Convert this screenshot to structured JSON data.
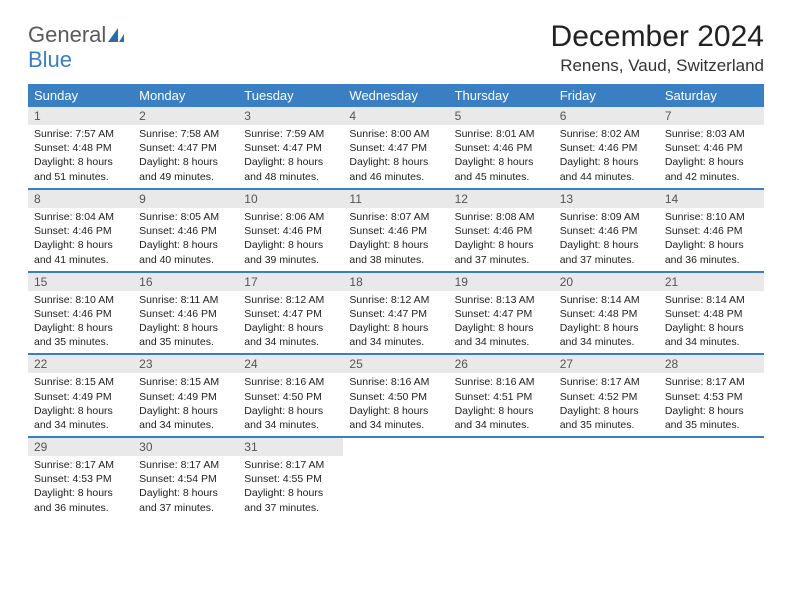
{
  "logo": {
    "general": "General",
    "blue": "Blue"
  },
  "title": "December 2024",
  "location": "Renens, Vaud, Switzerland",
  "colors": {
    "header_bg": "#3a7fc4",
    "header_text": "#ffffff",
    "daynum_bg": "#e9e9e9",
    "border": "#3a7fc4"
  },
  "weekdays": [
    "Sunday",
    "Monday",
    "Tuesday",
    "Wednesday",
    "Thursday",
    "Friday",
    "Saturday"
  ],
  "weeks": [
    [
      {
        "n": "1",
        "sr": "Sunrise: 7:57 AM",
        "ss": "Sunset: 4:48 PM",
        "dl": "Daylight: 8 hours and 51 minutes."
      },
      {
        "n": "2",
        "sr": "Sunrise: 7:58 AM",
        "ss": "Sunset: 4:47 PM",
        "dl": "Daylight: 8 hours and 49 minutes."
      },
      {
        "n": "3",
        "sr": "Sunrise: 7:59 AM",
        "ss": "Sunset: 4:47 PM",
        "dl": "Daylight: 8 hours and 48 minutes."
      },
      {
        "n": "4",
        "sr": "Sunrise: 8:00 AM",
        "ss": "Sunset: 4:47 PM",
        "dl": "Daylight: 8 hours and 46 minutes."
      },
      {
        "n": "5",
        "sr": "Sunrise: 8:01 AM",
        "ss": "Sunset: 4:46 PM",
        "dl": "Daylight: 8 hours and 45 minutes."
      },
      {
        "n": "6",
        "sr": "Sunrise: 8:02 AM",
        "ss": "Sunset: 4:46 PM",
        "dl": "Daylight: 8 hours and 44 minutes."
      },
      {
        "n": "7",
        "sr": "Sunrise: 8:03 AM",
        "ss": "Sunset: 4:46 PM",
        "dl": "Daylight: 8 hours and 42 minutes."
      }
    ],
    [
      {
        "n": "8",
        "sr": "Sunrise: 8:04 AM",
        "ss": "Sunset: 4:46 PM",
        "dl": "Daylight: 8 hours and 41 minutes."
      },
      {
        "n": "9",
        "sr": "Sunrise: 8:05 AM",
        "ss": "Sunset: 4:46 PM",
        "dl": "Daylight: 8 hours and 40 minutes."
      },
      {
        "n": "10",
        "sr": "Sunrise: 8:06 AM",
        "ss": "Sunset: 4:46 PM",
        "dl": "Daylight: 8 hours and 39 minutes."
      },
      {
        "n": "11",
        "sr": "Sunrise: 8:07 AM",
        "ss": "Sunset: 4:46 PM",
        "dl": "Daylight: 8 hours and 38 minutes."
      },
      {
        "n": "12",
        "sr": "Sunrise: 8:08 AM",
        "ss": "Sunset: 4:46 PM",
        "dl": "Daylight: 8 hours and 37 minutes."
      },
      {
        "n": "13",
        "sr": "Sunrise: 8:09 AM",
        "ss": "Sunset: 4:46 PM",
        "dl": "Daylight: 8 hours and 37 minutes."
      },
      {
        "n": "14",
        "sr": "Sunrise: 8:10 AM",
        "ss": "Sunset: 4:46 PM",
        "dl": "Daylight: 8 hours and 36 minutes."
      }
    ],
    [
      {
        "n": "15",
        "sr": "Sunrise: 8:10 AM",
        "ss": "Sunset: 4:46 PM",
        "dl": "Daylight: 8 hours and 35 minutes."
      },
      {
        "n": "16",
        "sr": "Sunrise: 8:11 AM",
        "ss": "Sunset: 4:46 PM",
        "dl": "Daylight: 8 hours and 35 minutes."
      },
      {
        "n": "17",
        "sr": "Sunrise: 8:12 AM",
        "ss": "Sunset: 4:47 PM",
        "dl": "Daylight: 8 hours and 34 minutes."
      },
      {
        "n": "18",
        "sr": "Sunrise: 8:12 AM",
        "ss": "Sunset: 4:47 PM",
        "dl": "Daylight: 8 hours and 34 minutes."
      },
      {
        "n": "19",
        "sr": "Sunrise: 8:13 AM",
        "ss": "Sunset: 4:47 PM",
        "dl": "Daylight: 8 hours and 34 minutes."
      },
      {
        "n": "20",
        "sr": "Sunrise: 8:14 AM",
        "ss": "Sunset: 4:48 PM",
        "dl": "Daylight: 8 hours and 34 minutes."
      },
      {
        "n": "21",
        "sr": "Sunrise: 8:14 AM",
        "ss": "Sunset: 4:48 PM",
        "dl": "Daylight: 8 hours and 34 minutes."
      }
    ],
    [
      {
        "n": "22",
        "sr": "Sunrise: 8:15 AM",
        "ss": "Sunset: 4:49 PM",
        "dl": "Daylight: 8 hours and 34 minutes."
      },
      {
        "n": "23",
        "sr": "Sunrise: 8:15 AM",
        "ss": "Sunset: 4:49 PM",
        "dl": "Daylight: 8 hours and 34 minutes."
      },
      {
        "n": "24",
        "sr": "Sunrise: 8:16 AM",
        "ss": "Sunset: 4:50 PM",
        "dl": "Daylight: 8 hours and 34 minutes."
      },
      {
        "n": "25",
        "sr": "Sunrise: 8:16 AM",
        "ss": "Sunset: 4:50 PM",
        "dl": "Daylight: 8 hours and 34 minutes."
      },
      {
        "n": "26",
        "sr": "Sunrise: 8:16 AM",
        "ss": "Sunset: 4:51 PM",
        "dl": "Daylight: 8 hours and 34 minutes."
      },
      {
        "n": "27",
        "sr": "Sunrise: 8:17 AM",
        "ss": "Sunset: 4:52 PM",
        "dl": "Daylight: 8 hours and 35 minutes."
      },
      {
        "n": "28",
        "sr": "Sunrise: 8:17 AM",
        "ss": "Sunset: 4:53 PM",
        "dl": "Daylight: 8 hours and 35 minutes."
      }
    ],
    [
      {
        "n": "29",
        "sr": "Sunrise: 8:17 AM",
        "ss": "Sunset: 4:53 PM",
        "dl": "Daylight: 8 hours and 36 minutes."
      },
      {
        "n": "30",
        "sr": "Sunrise: 8:17 AM",
        "ss": "Sunset: 4:54 PM",
        "dl": "Daylight: 8 hours and 37 minutes."
      },
      {
        "n": "31",
        "sr": "Sunrise: 8:17 AM",
        "ss": "Sunset: 4:55 PM",
        "dl": "Daylight: 8 hours and 37 minutes."
      },
      null,
      null,
      null,
      null
    ]
  ]
}
